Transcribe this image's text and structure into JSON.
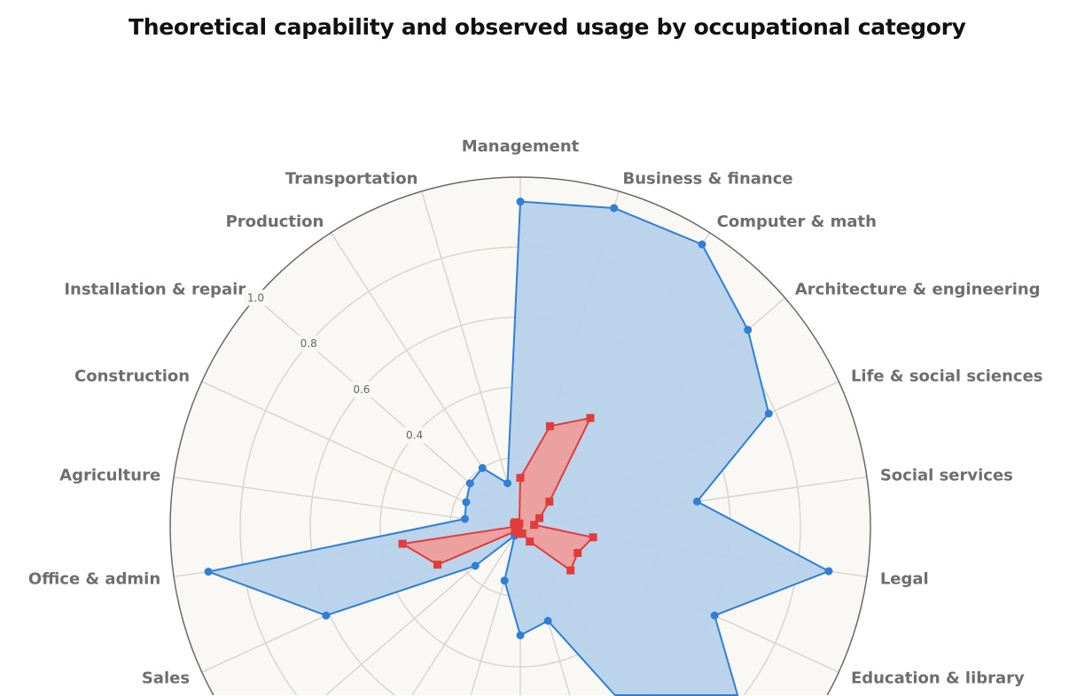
{
  "chart_data": {
    "type": "radar",
    "title": "Theoretical capability and observed usage by occupational category",
    "categories": [
      "Management",
      "Business & finance",
      "Computer & math",
      "Architecture & engineering",
      "Life & social sciences",
      "Social services",
      "Legal",
      "Education & library",
      "",
      "",
      "",
      "",
      "",
      "",
      "",
      "Sales",
      "Office & admin",
      "Agriculture",
      "Construction",
      "Installation & repair",
      "Production",
      "Transportation"
    ],
    "rlim": [
      0,
      1.0
    ],
    "r_ticks": [
      0.4,
      0.6,
      0.8,
      1.0
    ],
    "grid": true,
    "series": [
      {
        "name": "Theoretical capability",
        "color": "#2f7fd6",
        "fill": "#b8d2ea",
        "values": [
          0.93,
          0.95,
          0.96,
          0.86,
          0.78,
          0.51,
          0.89,
          0.61,
          0.85,
          0.75,
          0.28,
          0.31,
          0.16,
          0.03,
          0.17,
          0.61,
          0.9,
          0.16,
          0.17,
          0.19,
          0.2,
          0.13
        ]
      },
      {
        "name": "Observed usage",
        "color": "#e03c3c",
        "fill": "#f09b98",
        "values": [
          0.14,
          0.3,
          0.37,
          0.11,
          0.06,
          0.04,
          0.21,
          0.18,
          0.19,
          0.05,
          0.02,
          0.02,
          0.02,
          0.01,
          0.02,
          0.26,
          0.34,
          0.01,
          0.02,
          0.02,
          0.01,
          0.01
        ]
      }
    ]
  }
}
